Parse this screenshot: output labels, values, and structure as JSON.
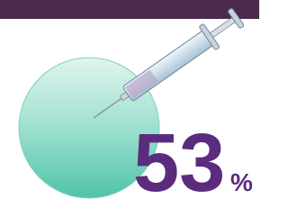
{
  "stat": {
    "value": "53",
    "unit": "%"
  }
}
